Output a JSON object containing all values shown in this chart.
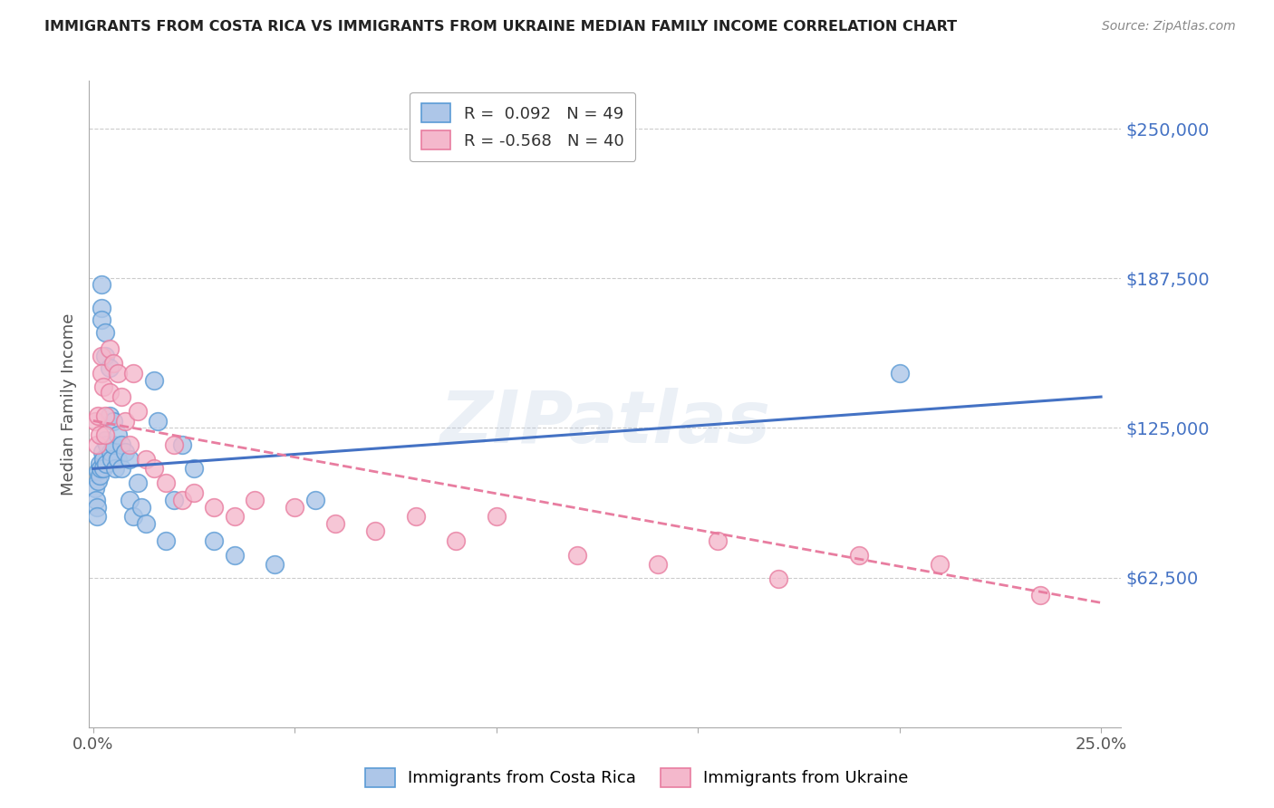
{
  "title": "IMMIGRANTS FROM COSTA RICA VS IMMIGRANTS FROM UKRAINE MEDIAN FAMILY INCOME CORRELATION CHART",
  "source": "Source: ZipAtlas.com",
  "ylabel": "Median Family Income",
  "ytick_labels": [
    "$250,000",
    "$187,500",
    "$125,000",
    "$62,500"
  ],
  "ytick_values": [
    250000,
    187500,
    125000,
    62500
  ],
  "ylim": [
    0,
    270000
  ],
  "xlim": [
    -0.001,
    0.255
  ],
  "blue_R": 0.092,
  "blue_N": 49,
  "pink_R": -0.568,
  "pink_N": 40,
  "costa_rica_x": [
    0.0005,
    0.0008,
    0.001,
    0.001,
    0.0012,
    0.0012,
    0.0015,
    0.0015,
    0.0018,
    0.002,
    0.002,
    0.002,
    0.0022,
    0.0025,
    0.0025,
    0.003,
    0.003,
    0.003,
    0.0032,
    0.0035,
    0.004,
    0.004,
    0.0042,
    0.0045,
    0.005,
    0.005,
    0.0055,
    0.006,
    0.006,
    0.007,
    0.007,
    0.008,
    0.009,
    0.009,
    0.01,
    0.011,
    0.012,
    0.013,
    0.015,
    0.016,
    0.018,
    0.02,
    0.022,
    0.025,
    0.03,
    0.035,
    0.045,
    0.055,
    0.2
  ],
  "costa_rica_y": [
    100000,
    95000,
    92000,
    88000,
    107000,
    103000,
    110000,
    105000,
    108000,
    185000,
    175000,
    170000,
    115000,
    112000,
    108000,
    165000,
    155000,
    120000,
    110000,
    118000,
    150000,
    130000,
    115000,
    112000,
    128000,
    118000,
    108000,
    122000,
    112000,
    118000,
    108000,
    115000,
    112000,
    95000,
    88000,
    102000,
    92000,
    85000,
    145000,
    128000,
    78000,
    95000,
    118000,
    108000,
    78000,
    72000,
    68000,
    95000,
    148000
  ],
  "ukraine_x": [
    0.0005,
    0.001,
    0.0012,
    0.0015,
    0.002,
    0.002,
    0.0025,
    0.003,
    0.003,
    0.004,
    0.004,
    0.005,
    0.006,
    0.007,
    0.008,
    0.009,
    0.01,
    0.011,
    0.013,
    0.015,
    0.018,
    0.02,
    0.022,
    0.025,
    0.03,
    0.035,
    0.04,
    0.05,
    0.06,
    0.07,
    0.08,
    0.09,
    0.1,
    0.12,
    0.14,
    0.155,
    0.17,
    0.19,
    0.21,
    0.235
  ],
  "ukraine_y": [
    128000,
    118000,
    130000,
    122000,
    155000,
    148000,
    142000,
    130000,
    122000,
    158000,
    140000,
    152000,
    148000,
    138000,
    128000,
    118000,
    148000,
    132000,
    112000,
    108000,
    102000,
    118000,
    95000,
    98000,
    92000,
    88000,
    95000,
    92000,
    85000,
    82000,
    88000,
    78000,
    88000,
    72000,
    68000,
    78000,
    62000,
    72000,
    68000,
    55000
  ],
  "blue_color": "#4472c4",
  "pink_color": "#e87da0",
  "blue_scatter_face": "#adc6e8",
  "pink_scatter_face": "#f4b8cc",
  "blue_scatter_edge": "#5b9bd5",
  "pink_scatter_edge": "#e87da0",
  "background_color": "#ffffff",
  "grid_color": "#cccccc",
  "title_color": "#222222",
  "label_color": "#4472c4",
  "watermark": "ZIPatlas",
  "blue_line_x0": 0.0,
  "blue_line_x1": 0.25,
  "blue_line_y0": 108000,
  "blue_line_y1": 138000,
  "pink_line_x0": 0.0,
  "pink_line_x1": 0.25,
  "pink_line_y0": 128000,
  "pink_line_y1": 52000,
  "xtick_positions": [
    0.0,
    0.05,
    0.1,
    0.15,
    0.2,
    0.25
  ],
  "xtick_labels_show": [
    "0.0%",
    "",
    "",
    "",
    "",
    "25.0%"
  ]
}
